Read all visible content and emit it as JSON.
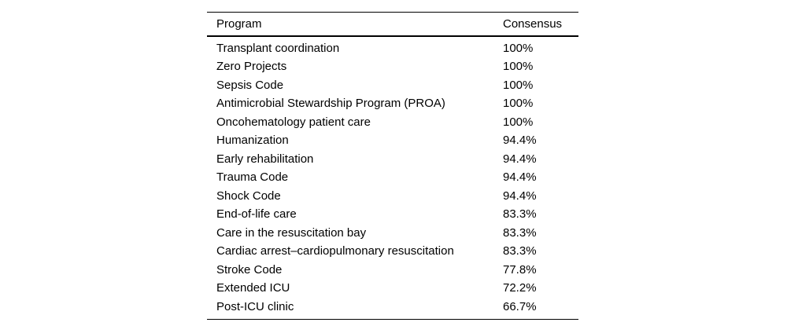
{
  "table": {
    "columns": [
      "Program",
      "Consensus"
    ],
    "rows": [
      {
        "program": "Transplant coordination",
        "consensus": "100%"
      },
      {
        "program": "Zero Projects",
        "consensus": "100%"
      },
      {
        "program": "Sepsis Code",
        "consensus": "100%"
      },
      {
        "program": "Antimicrobial Stewardship Program (PROA)",
        "consensus": "100%"
      },
      {
        "program": "Oncohematology patient care",
        "consensus": "100%"
      },
      {
        "program": "Humanization",
        "consensus": "94.4%"
      },
      {
        "program": "Early rehabilitation",
        "consensus": "94.4%"
      },
      {
        "program": "Trauma Code",
        "consensus": "94.4%"
      },
      {
        "program": "Shock Code",
        "consensus": "94.4%"
      },
      {
        "program": "End-of-life care",
        "consensus": "83.3%"
      },
      {
        "program": "Care in the resuscitation bay",
        "consensus": "83.3%"
      },
      {
        "program": "Cardiac arrest–cardiopulmonary resuscitation",
        "consensus": "83.3%"
      },
      {
        "program": "Stroke Code",
        "consensus": "77.8%"
      },
      {
        "program": "Extended ICU",
        "consensus": "72.2%"
      },
      {
        "program": "Post-ICU clinic",
        "consensus": "66.7%"
      }
    ]
  },
  "colors": {
    "background": "#ffffff",
    "text": "#000000",
    "rule": "#000000"
  }
}
